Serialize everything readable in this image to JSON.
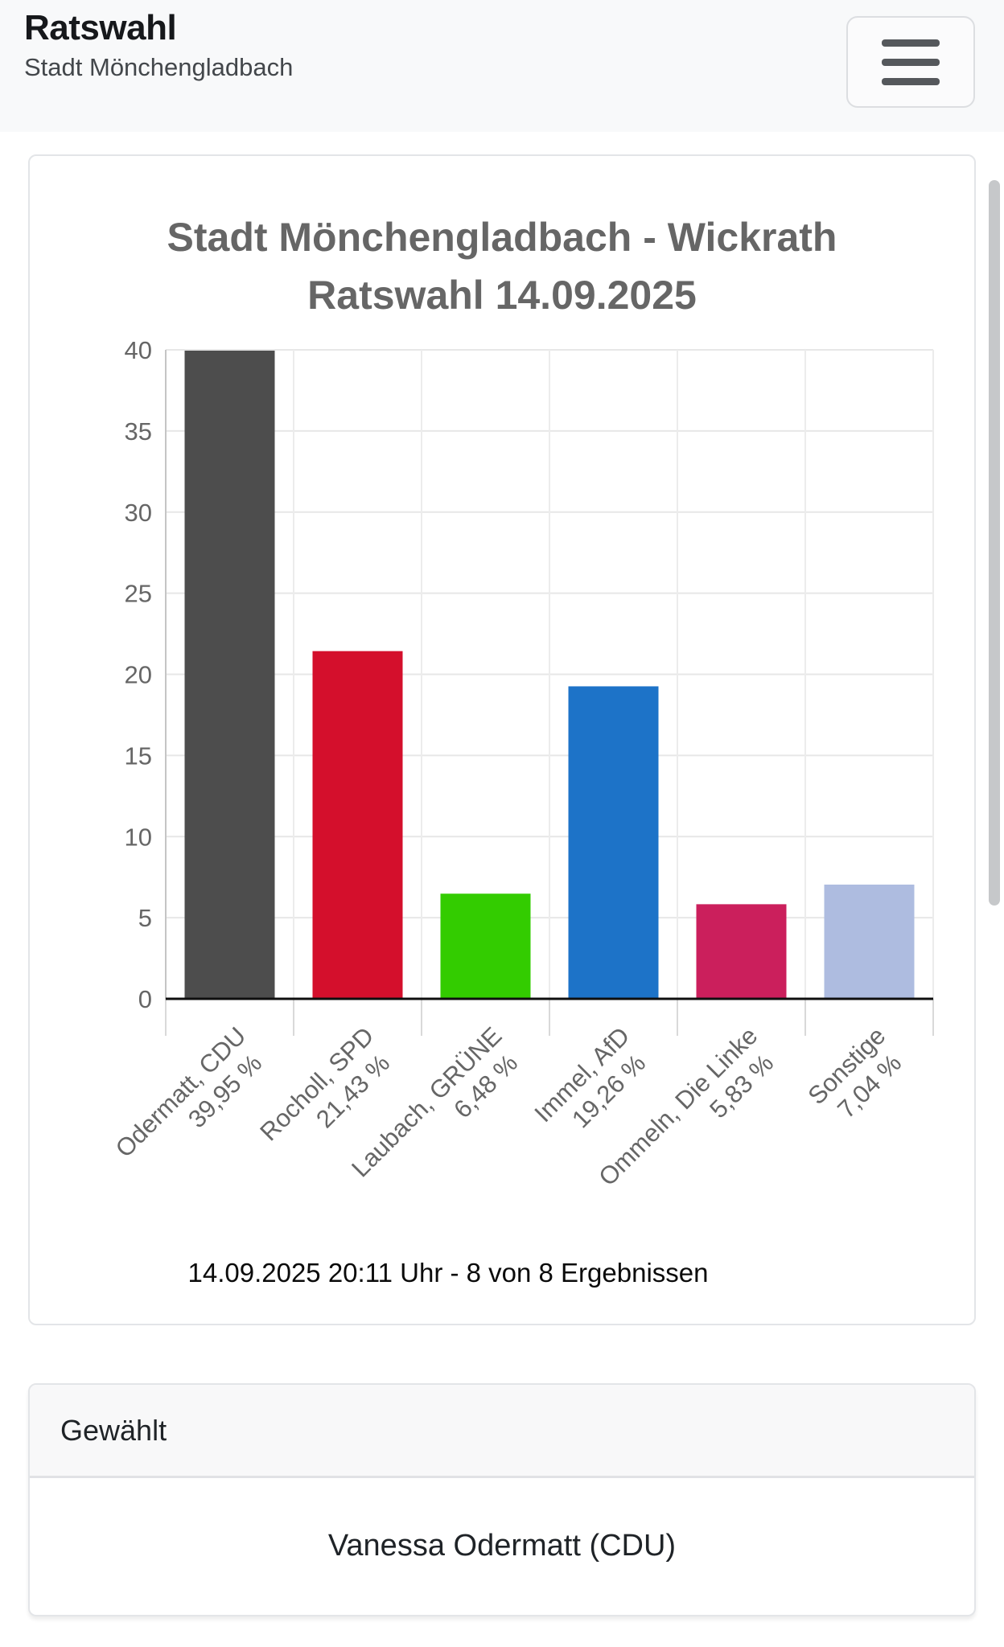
{
  "nav": {
    "title": "Ratswahl",
    "subtitle": "Stadt Mönchengladbach",
    "menu_icon": "hamburger-icon"
  },
  "chart_data": {
    "type": "bar",
    "title": "Stadt Mönchengladbach - Wickrath Ratswahl 14.09.2025",
    "title_lines": [
      "Stadt Mönchengladbach - Wickrath",
      "Ratswahl 14.09.2025"
    ],
    "categories": [
      "Odermatt, CDU",
      "Rocholl, SPD",
      "Laubach, GRÜNE",
      "Immel, AfD",
      "Ommeln, Die Linke",
      "Sonstige"
    ],
    "values": [
      39.95,
      21.43,
      6.48,
      19.26,
      5.83,
      7.04
    ],
    "value_labels": [
      "39,95 %",
      "21,43 %",
      "6,48 %",
      "19,26 %",
      "5,83 %",
      "7,04 %"
    ],
    "bar_colors": [
      "#4d4d4d",
      "#d40f2c",
      "#33cc00",
      "#1d73c8",
      "#cb1f5c",
      "#aebce0"
    ],
    "ylim": [
      0,
      40
    ],
    "yticks": [
      0,
      5,
      10,
      15,
      20,
      25,
      30,
      35,
      40
    ],
    "xlabel": "",
    "ylabel": "",
    "grid": true,
    "legend_position": "none",
    "xlabel_rotation_deg": -45,
    "caption": "14.09.2025 20:11 Uhr - 8 von 8 Ergebnissen",
    "title_color": "#666666",
    "axis_label_color": "#666666"
  },
  "elected_card": {
    "header": "Gewählt",
    "value": "Vanessa Odermatt (CDU)"
  }
}
